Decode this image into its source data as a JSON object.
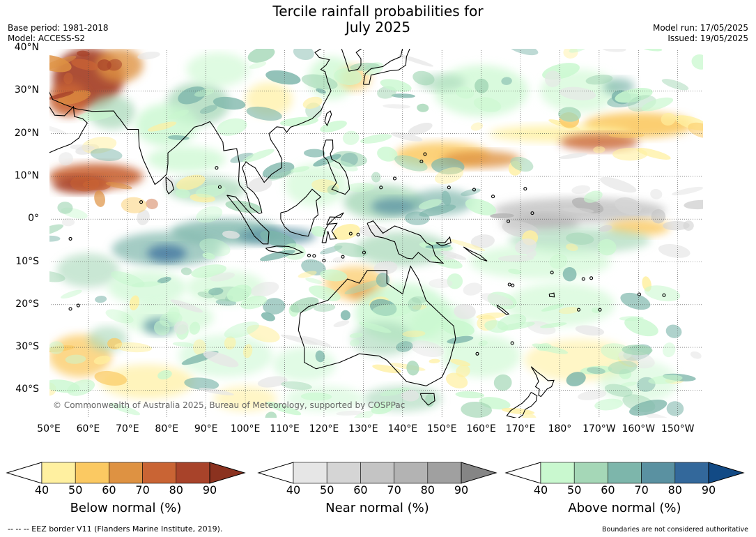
{
  "title": {
    "line1": "Tercile rainfall probabilities for",
    "line2": "July 2025"
  },
  "meta": {
    "base_period": "Base period: 1981-2018",
    "model": "Model: ACCESS-S2",
    "model_run": "Model run: 17/05/2025",
    "issued": "Issued: 19/05/2025"
  },
  "map": {
    "lat_labels": [
      "40°N",
      "30°N",
      "20°N",
      "10°N",
      "0°",
      "10°S",
      "20°S",
      "30°S",
      "40°S"
    ],
    "lon_labels": [
      "50°E",
      "60°E",
      "70°E",
      "80°E",
      "90°E",
      "100°E",
      "110°E",
      "120°E",
      "130°E",
      "140°E",
      "150°E",
      "160°E",
      "170°E",
      "180°",
      "170°W",
      "160°W",
      "150°W"
    ],
    "copyright": "© Commonwealth of Australia 2025, Bureau of Meteorology, supported by COSPPac"
  },
  "colorbars": [
    {
      "label": "Below normal (%)",
      "ticks": [
        "40",
        "50",
        "60",
        "70",
        "80",
        "90"
      ],
      "colors": [
        "#fff0a0",
        "#fbc962",
        "#de9242",
        "#c96434",
        "#a8432a"
      ],
      "over": "#8b321f"
    },
    {
      "label": "Near normal (%)",
      "ticks": [
        "40",
        "50",
        "60",
        "70",
        "80",
        "90"
      ],
      "colors": [
        "#e6e6e6",
        "#d5d5d5",
        "#c4c4c4",
        "#b3b3b3",
        "#a0a0a0"
      ],
      "over": "#858585"
    },
    {
      "label": "Above normal (%)",
      "ticks": [
        "40",
        "50",
        "60",
        "70",
        "80",
        "90"
      ],
      "colors": [
        "#c9f8cf",
        "#a5d7b7",
        "#7db6ab",
        "#5a91a1",
        "#33689b"
      ],
      "over": "#124a85"
    }
  ],
  "footer": {
    "eez": "--  --  -- EEZ border V11 (Flanders Marine Institute, 2019).",
    "boundaries": "Boundaries are not considered authoritative"
  }
}
